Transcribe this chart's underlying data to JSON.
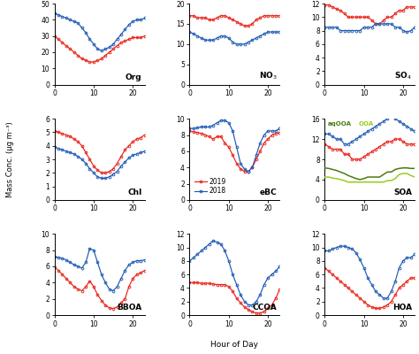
{
  "hours": [
    0,
    1,
    2,
    3,
    4,
    5,
    6,
    7,
    8,
    9,
    10,
    11,
    12,
    13,
    14,
    15,
    16,
    17,
    18,
    19,
    20,
    21,
    22,
    23
  ],
  "Org": {
    "r2019": [
      30,
      28,
      26,
      24,
      22,
      20,
      18,
      16,
      15,
      14,
      14,
      15,
      16,
      18,
      20,
      22,
      24,
      26,
      27,
      28,
      29,
      29,
      29,
      30
    ],
    "b2018": [
      44,
      43,
      42,
      41,
      40,
      39,
      38,
      35,
      32,
      28,
      25,
      22,
      21,
      22,
      23,
      25,
      28,
      31,
      34,
      37,
      39,
      40,
      40,
      41
    ],
    "ylim": [
      0,
      50
    ],
    "yticks": [
      0,
      10,
      20,
      30,
      40,
      50
    ]
  },
  "NO3": {
    "r2019": [
      17,
      17,
      16.5,
      16.5,
      16.5,
      16,
      16,
      16.5,
      17,
      17,
      16.5,
      16,
      15.5,
      15,
      14.5,
      14.5,
      15,
      16,
      16.5,
      17,
      17,
      17,
      17,
      17
    ],
    "b2018": [
      13,
      12.5,
      12,
      11.5,
      11,
      11,
      11,
      11.5,
      12,
      12,
      11.5,
      10.5,
      10,
      10,
      10,
      10.5,
      11,
      11.5,
      12,
      12.5,
      13,
      13,
      13,
      13
    ],
    "ylim": [
      0,
      20
    ],
    "yticks": [
      0,
      5,
      10,
      15,
      20
    ]
  },
  "SO4": {
    "r2019": [
      11.8,
      11.8,
      11.5,
      11.2,
      11,
      10.5,
      10,
      10,
      10,
      10,
      10,
      10,
      9.5,
      9.0,
      9.0,
      9.5,
      10,
      10,
      10.5,
      11,
      11,
      11.5,
      11.5,
      11.5
    ],
    "b2018": [
      8.5,
      8.5,
      8.5,
      8.5,
      8,
      8,
      8,
      8,
      8,
      8,
      8.5,
      8.5,
      8.5,
      9.0,
      9.0,
      9.0,
      9.0,
      9.0,
      8.5,
      8.5,
      8.0,
      7.8,
      8.0,
      8.5
    ],
    "ylim": [
      0,
      12
    ],
    "yticks": [
      0,
      2,
      4,
      6,
      8,
      10,
      12
    ]
  },
  "Chl": {
    "r2019": [
      5.1,
      5.0,
      4.9,
      4.8,
      4.7,
      4.5,
      4.3,
      4.0,
      3.5,
      3.0,
      2.5,
      2.2,
      2.0,
      2.0,
      2.1,
      2.3,
      2.7,
      3.2,
      3.7,
      4.0,
      4.3,
      4.5,
      4.6,
      4.8
    ],
    "b2018": [
      3.9,
      3.8,
      3.7,
      3.6,
      3.5,
      3.4,
      3.2,
      3.0,
      2.7,
      2.3,
      2.0,
      1.7,
      1.6,
      1.6,
      1.7,
      1.9,
      2.1,
      2.5,
      2.8,
      3.1,
      3.3,
      3.4,
      3.5,
      3.6
    ],
    "ylim": [
      0,
      6
    ],
    "yticks": [
      0,
      1,
      2,
      3,
      4,
      5,
      6
    ]
  },
  "eBC": {
    "r2019": [
      8.5,
      8.4,
      8.3,
      8.2,
      8.0,
      7.8,
      7.5,
      7.8,
      7.8,
      7.0,
      6.5,
      5.5,
      4.5,
      3.8,
      3.5,
      3.5,
      4.0,
      5.0,
      6.0,
      7.0,
      7.5,
      8.0,
      8.2,
      8.3
    ],
    "b2018": [
      8.8,
      8.8,
      8.9,
      9.0,
      9.0,
      9.0,
      9.2,
      9.5,
      9.8,
      9.8,
      9.5,
      8.5,
      6.5,
      4.5,
      3.8,
      3.5,
      4.0,
      5.5,
      7.0,
      8.0,
      8.5,
      8.5,
      8.5,
      8.8
    ],
    "ylim": [
      0,
      10
    ],
    "yticks": [
      0,
      2,
      4,
      6,
      8,
      10
    ]
  },
  "SOA": {
    "r2019": [
      11,
      10.5,
      10,
      10,
      10,
      9,
      9,
      8,
      8,
      8,
      8.5,
      9,
      9.5,
      10,
      10.5,
      11,
      11.5,
      11.5,
      12,
      12,
      11.5,
      11,
      11,
      11
    ],
    "b2018": [
      13,
      13,
      12.5,
      12,
      12,
      11,
      11,
      11.5,
      12,
      12.5,
      13,
      13.5,
      14,
      14.5,
      15,
      15.5,
      16,
      16.5,
      16,
      15.5,
      15,
      14.5,
      14,
      13.5
    ],
    "aqOOA": [
      6.3,
      6.2,
      6.0,
      5.8,
      5.5,
      5.2,
      4.8,
      4.5,
      4.2,
      4.0,
      4.2,
      4.5,
      4.5,
      4.5,
      4.5,
      5.0,
      5.5,
      5.5,
      6.0,
      6.2,
      6.3,
      6.3,
      6.2,
      6.2
    ],
    "OOA": [
      4.5,
      4.5,
      4.3,
      4.2,
      4.0,
      3.8,
      3.5,
      3.5,
      3.5,
      3.5,
      3.5,
      3.5,
      3.5,
      3.5,
      3.5,
      3.5,
      3.8,
      3.8,
      4.2,
      5.0,
      5.2,
      5.2,
      4.8,
      4.5
    ],
    "ylim": [
      0,
      16
    ],
    "yticks": [
      0,
      4,
      8,
      12,
      16
    ]
  },
  "BBOA": {
    "r2019": [
      5.9,
      5.5,
      5.0,
      4.5,
      4.0,
      3.5,
      3.2,
      3.0,
      3.5,
      4.2,
      3.5,
      2.5,
      1.8,
      1.2,
      0.9,
      0.8,
      1.0,
      1.5,
      2.0,
      3.5,
      4.5,
      5.0,
      5.2,
      5.5
    ],
    "b2018": [
      7.2,
      7.1,
      7.0,
      6.8,
      6.5,
      6.2,
      6.0,
      5.8,
      6.5,
      8.2,
      8.0,
      6.5,
      5.0,
      4.0,
      3.2,
      3.0,
      3.5,
      4.5,
      5.5,
      6.2,
      6.5,
      6.7,
      6.7,
      6.8
    ],
    "ylim": [
      0,
      10
    ],
    "yticks": [
      0,
      2,
      4,
      6,
      8,
      10
    ]
  },
  "CCOA": {
    "r2019": [
      4.8,
      4.8,
      4.8,
      4.7,
      4.7,
      4.7,
      4.6,
      4.5,
      4.5,
      4.5,
      4.2,
      3.5,
      2.5,
      1.8,
      1.2,
      0.8,
      0.5,
      0.3,
      0.3,
      0.5,
      1.0,
      1.5,
      2.5,
      3.8
    ],
    "b2018": [
      8.0,
      8.5,
      9.0,
      9.5,
      10.0,
      10.5,
      11.0,
      10.8,
      10.5,
      9.5,
      8.0,
      6.0,
      4.5,
      3.0,
      2.0,
      1.5,
      1.5,
      2.0,
      3.0,
      4.5,
      5.5,
      6.0,
      6.5,
      7.2
    ],
    "ylim": [
      0,
      12
    ],
    "yticks": [
      0,
      2,
      4,
      6,
      8,
      10,
      12
    ]
  },
  "HOA": {
    "r2019": [
      7.0,
      6.5,
      6.0,
      5.5,
      5.0,
      4.5,
      4.0,
      3.5,
      3.0,
      2.5,
      2.0,
      1.5,
      1.2,
      1.0,
      1.0,
      1.2,
      1.5,
      2.0,
      3.0,
      4.0,
      4.5,
      5.0,
      5.5,
      5.5
    ],
    "b2018": [
      9.5,
      9.5,
      9.8,
      10.0,
      10.2,
      10.2,
      10.0,
      9.8,
      9.2,
      8.2,
      7.0,
      5.5,
      4.5,
      3.5,
      3.0,
      2.5,
      2.5,
      3.5,
      5.0,
      7.0,
      8.0,
      8.5,
      8.5,
      9.0
    ],
    "ylim": [
      0,
      12
    ],
    "yticks": [
      0,
      2,
      4,
      6,
      8,
      10,
      12
    ]
  },
  "red_color": "#e8231a",
  "blue_color": "#1f5ab5",
  "aqooa_color": "#4a7a12",
  "ooa_color": "#98cc20",
  "ylabel": "Mass Conc. (µg m⁻³)",
  "xlabel": "Hour of Day",
  "legend_2019": "2019",
  "legend_2018": "2018"
}
